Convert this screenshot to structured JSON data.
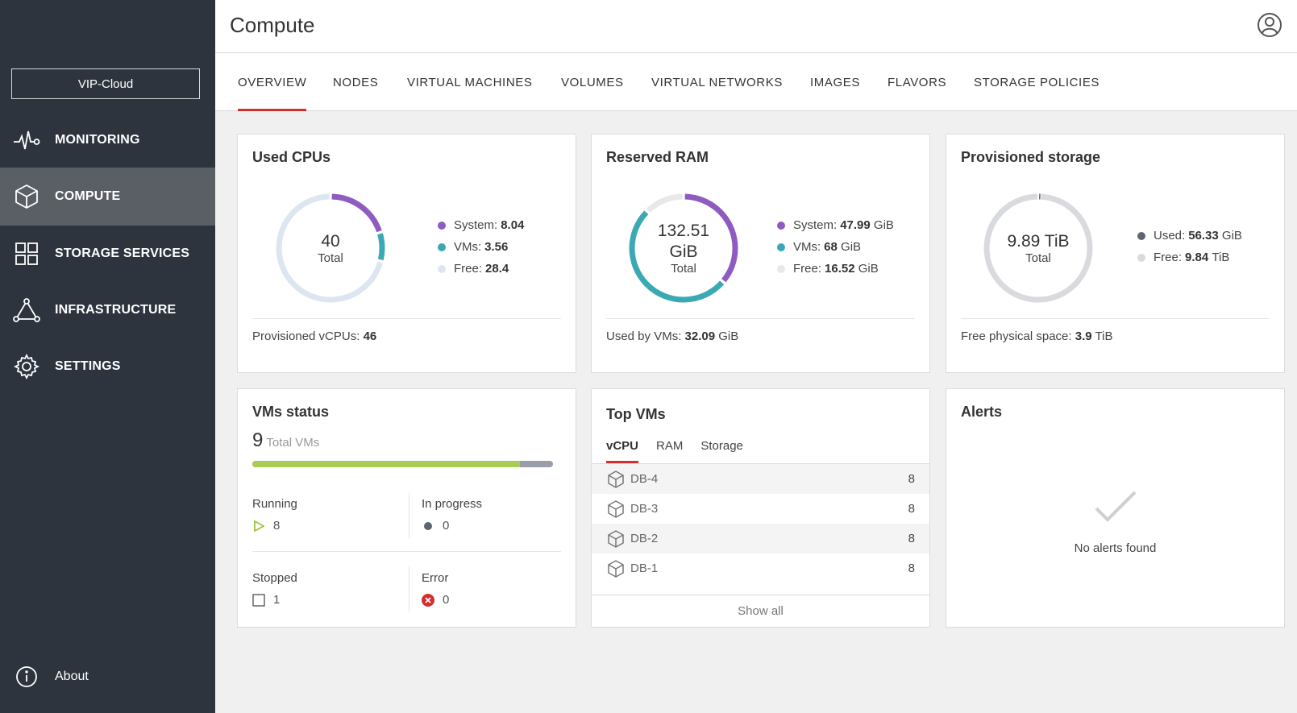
{
  "sidebar": {
    "cluster_name": "VIP-Cloud",
    "items": [
      {
        "label": "MONITORING",
        "icon": "pulse-icon"
      },
      {
        "label": "COMPUTE",
        "icon": "cube-icon",
        "active": true
      },
      {
        "label": "STORAGE SERVICES",
        "icon": "grid-icon"
      },
      {
        "label": "INFRASTRUCTURE",
        "icon": "network-triangle-icon"
      },
      {
        "label": "SETTINGS",
        "icon": "gear-icon"
      }
    ],
    "about_label": "About"
  },
  "header": {
    "title": "Compute",
    "avatar_icon": "user-avatar-icon"
  },
  "tabs": [
    {
      "label": "OVERVIEW",
      "active": true
    },
    {
      "label": "NODES"
    },
    {
      "label": "VIRTUAL MACHINES"
    },
    {
      "label": "VOLUMES"
    },
    {
      "label": "VIRTUAL NETWORKS"
    },
    {
      "label": "IMAGES"
    },
    {
      "label": "FLAVORS"
    },
    {
      "label": "STORAGE POLICIES"
    }
  ],
  "cpus": {
    "title": "Used CPUs",
    "total_value": "40",
    "total_label": "Total",
    "legend": [
      {
        "label": "System:",
        "value": "8.04",
        "unit": "",
        "color": "#8e5cc0"
      },
      {
        "label": "VMs:",
        "value": "3.56",
        "unit": "",
        "color": "#3ba9b4"
      },
      {
        "label": "Free:",
        "value": "28.4",
        "unit": "",
        "color": "#dde6f0"
      }
    ],
    "footer_label": "Provisioned vCPUs:",
    "footer_value": "46"
  },
  "ram": {
    "title": "Reserved RAM",
    "total_value": "132.51",
    "total_unit": "GiB",
    "total_label": "Total",
    "legend": [
      {
        "label": "System:",
        "value": "47.99",
        "unit": "GiB",
        "color": "#8e5cc0"
      },
      {
        "label": "VMs:",
        "value": "68",
        "unit": "GiB",
        "color": "#3ba9b4"
      },
      {
        "label": "Free:",
        "value": "16.52",
        "unit": "GiB",
        "color": "#e8e8e8"
      }
    ],
    "footer_label": "Used by VMs:",
    "footer_value": "32.09",
    "footer_unit": "GiB"
  },
  "storage": {
    "title": "Provisioned storage",
    "total_value": "9.89 TiB",
    "total_label": "Total",
    "legend": [
      {
        "label": "Used:",
        "value": "56.33",
        "unit": "GiB",
        "color": "#5f6670"
      },
      {
        "label": "Free:",
        "value": "9.84",
        "unit": "TiB",
        "color": "#d8dadd"
      }
    ],
    "footer_label": "Free physical space:",
    "footer_value": "3.9",
    "footer_unit": "TiB"
  },
  "vms_status": {
    "title": "VMs status",
    "total": "9",
    "total_label": "Total VMs",
    "running_fraction": 0.889,
    "running_label": "Running",
    "running_value": "8",
    "progress_label": "In progress",
    "progress_value": "0",
    "stopped_label": "Stopped",
    "stopped_value": "1",
    "error_label": "Error",
    "error_value": "0"
  },
  "top_vms": {
    "title": "Top VMs",
    "subtabs": [
      "vCPU",
      "RAM",
      "Storage"
    ],
    "rows": [
      {
        "name": "DB-4",
        "value": "8"
      },
      {
        "name": "DB-3",
        "value": "8"
      },
      {
        "name": "DB-2",
        "value": "8"
      },
      {
        "name": "DB-1",
        "value": "8"
      }
    ],
    "show_all": "Show all"
  },
  "alerts": {
    "title": "Alerts",
    "empty_text": "No alerts found"
  }
}
